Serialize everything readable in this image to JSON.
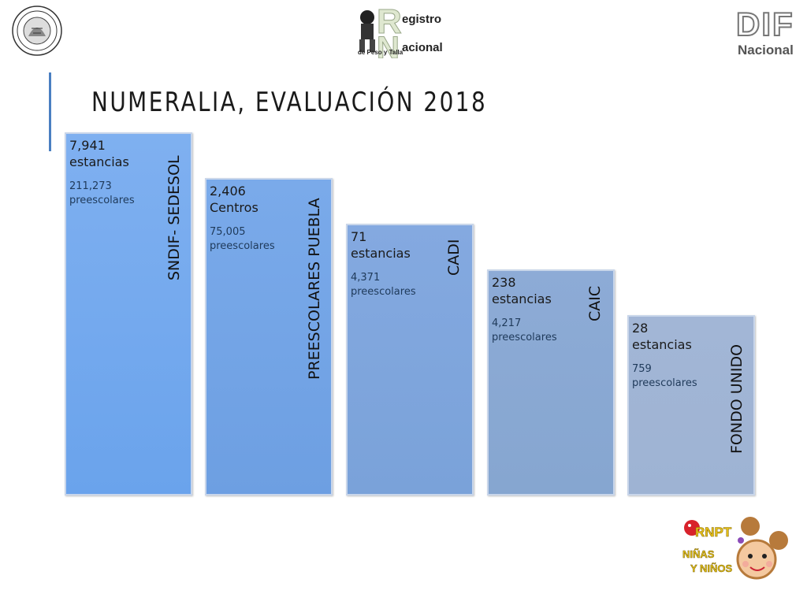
{
  "header": {
    "title": "NUMERALIA, EVALUACIÓN 2018",
    "rn_logo": {
      "word1": "egistro",
      "word2": "acional",
      "sub": "de Peso y Talla"
    },
    "dif_logo": {
      "word": "DIF",
      "sub": "Nacional"
    }
  },
  "bars": [
    {
      "count": "7,941 estancias",
      "preescolares": "211,273 preescolares",
      "label": "SNDIF- SEDESOL"
    },
    {
      "count": "2,406 Centros",
      "preescolares": "75,005 preescolares",
      "label": "PREESCOLARES PUEBLA"
    },
    {
      "count": "71 estancias",
      "preescolares": "4,371 preescolares",
      "label": "CADI"
    },
    {
      "count": "238 estancias",
      "preescolares": "4,217 preescolares",
      "label": "CAIC"
    },
    {
      "count": "28 estancias",
      "preescolares": "759 preescolares",
      "label": "FONDO UNIDO"
    }
  ],
  "footer_logo": {
    "word": "RNPT",
    "line1": "NIÑAS",
    "line2": "Y NIÑOS"
  },
  "colors": {
    "accent": "#4a7fc1",
    "bar1": "#6aa3ec",
    "bar5": "#9eb3d3"
  }
}
